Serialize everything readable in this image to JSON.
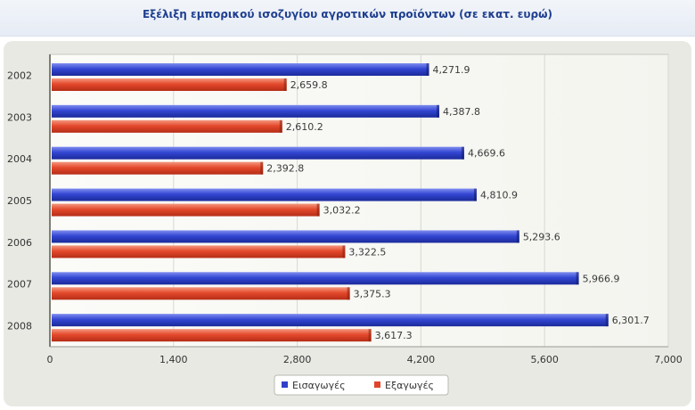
{
  "page": {
    "title": "Εξέλιξη εμπορικού ισοζυγίου αγροτικών προϊόντων (σε εκατ. ευρώ)"
  },
  "chart_data": {
    "type": "bar",
    "orientation": "horizontal",
    "title": "Εξέλιξη εμπορικού ισοζυγίου αγροτικών προϊόντων (σε εκατ. ευρώ)",
    "categories": [
      "2002",
      "2003",
      "2004",
      "2005",
      "2006",
      "2007",
      "2008"
    ],
    "series": [
      {
        "name": "Εισαγωγές",
        "color": "#2f41c9",
        "values": [
          4271.9,
          4387.8,
          4669.6,
          4810.9,
          5293.6,
          5966.9,
          6301.7
        ],
        "labels": [
          "4,271.9",
          "4,387.8",
          "4,669.6",
          "4,810.9",
          "5,293.6",
          "5,966.9",
          "6,301.7"
        ]
      },
      {
        "name": "Εξαγωγές",
        "color": "#e0452a",
        "values": [
          2659.8,
          2610.2,
          2392.8,
          3032.2,
          3322.5,
          3375.3,
          3617.3
        ],
        "labels": [
          "2,659.8",
          "2,610.2",
          "2,392.8",
          "3,032.2",
          "3,322.5",
          "3,375.3",
          "3,617.3"
        ]
      }
    ],
    "xlim": [
      0,
      7000
    ],
    "xticks": [
      0,
      1400,
      2800,
      4200,
      5600,
      7000
    ],
    "xtick_labels": [
      "0",
      "1,400",
      "2,800",
      "4,200",
      "5,600",
      "7,000"
    ],
    "grid": true,
    "legend_position": "bottom-center"
  }
}
